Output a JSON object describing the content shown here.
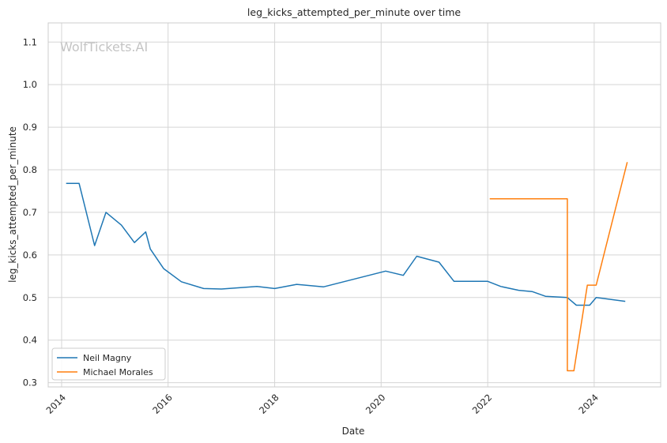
{
  "chart_data": {
    "type": "line",
    "title": "leg_kicks_attempted_per_minute over time",
    "xlabel": "Date",
    "ylabel": "leg_kicks_attempted_per_minute",
    "watermark": "WolfTickets.AI",
    "xlim": [
      "2013-10-01",
      "2025-04-01"
    ],
    "ylim": [
      0.29,
      1.145
    ],
    "x_ticks": [
      "2014",
      "2016",
      "2018",
      "2020",
      "2022",
      "2024"
    ],
    "y_ticks": [
      "0.3",
      "0.4",
      "0.5",
      "0.6",
      "0.7",
      "0.8",
      "0.9",
      "1.0",
      "1.1"
    ],
    "grid": true,
    "legend": "lower-left",
    "series": [
      {
        "name": "Neil Magny",
        "color": "#1f77b4",
        "x": [
          "2014-02-01",
          "2014-05-01",
          "2014-08-15",
          "2014-11-01",
          "2015-02-15",
          "2015-05-15",
          "2015-08-01",
          "2015-09-01",
          "2015-12-01",
          "2016-04-01",
          "2016-09-01",
          "2017-01-01",
          "2017-09-01",
          "2018-01-01",
          "2018-06-01",
          "2018-12-01",
          "2020-02-01",
          "2020-06-01",
          "2020-09-01",
          "2021-02-01",
          "2021-05-15",
          "2022-01-01",
          "2022-04-01",
          "2022-08-01",
          "2022-11-01",
          "2023-02-01",
          "2023-07-01",
          "2023-09-01",
          "2023-12-01",
          "2024-01-15",
          "2024-08-01"
        ],
        "y": [
          0.768,
          0.768,
          0.622,
          0.7,
          0.67,
          0.629,
          0.654,
          0.614,
          0.568,
          0.537,
          0.521,
          0.52,
          0.526,
          0.521,
          0.531,
          0.525,
          0.562,
          0.552,
          0.597,
          0.583,
          0.538,
          0.538,
          0.526,
          0.517,
          0.514,
          0.503,
          0.5,
          0.482,
          0.482,
          0.5,
          0.491
        ]
      },
      {
        "name": "Michael Morales",
        "color": "#ff7f0e",
        "x": [
          "2022-01-15",
          "2023-07-01",
          "2023-07-01",
          "2023-08-15",
          "2023-11-15",
          "2024-01-15",
          "2024-08-15"
        ],
        "y": [
          0.732,
          0.732,
          0.328,
          0.328,
          0.529,
          0.529,
          0.818
        ]
      }
    ]
  }
}
